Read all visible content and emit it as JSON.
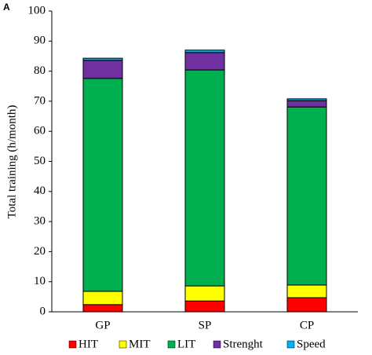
{
  "chart_data": {
    "type": "stacked_bar",
    "title": "A",
    "y_label": "Total training (h/month)",
    "categories": [
      "GP",
      "SP",
      "CP"
    ],
    "series": [
      {
        "name": "HIT",
        "color": "#ff0000",
        "values": [
          2.4,
          3.6,
          4.7
        ]
      },
      {
        "name": "MIT",
        "color": "#ffff00",
        "values": [
          4.4,
          5.0,
          4.2
        ]
      },
      {
        "name": "LIT",
        "color": "#00b050",
        "values": [
          70.8,
          71.8,
          59.2
        ]
      },
      {
        "name": "Strenght",
        "color": "#7030a0",
        "values": [
          6.0,
          5.8,
          2.1
        ]
      },
      {
        "name": "Speed",
        "color": "#00b0f0",
        "values": [
          0.7,
          0.8,
          0.6
        ]
      }
    ],
    "ylim": [
      0,
      100
    ],
    "yticks": [
      0,
      10,
      20,
      30,
      40,
      50,
      60,
      70,
      80,
      90,
      100
    ],
    "grid": false,
    "legend": "bottom"
  }
}
